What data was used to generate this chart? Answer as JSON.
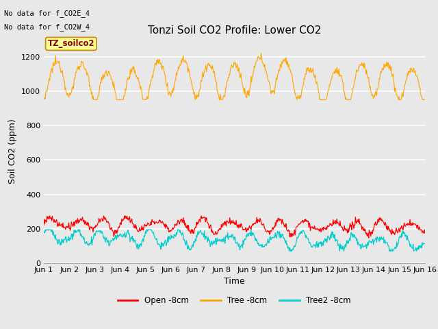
{
  "title": "Tonzi Soil CO2 Profile: Lower CO2",
  "xlabel": "Time",
  "ylabel": "Soil CO2 (ppm)",
  "no_data_text": [
    "No data for f_CO2E_4",
    "No data for f_CO2W_4"
  ],
  "annotation_text": "TZ_soilco2",
  "ylim": [
    0,
    1300
  ],
  "yticks": [
    0,
    200,
    400,
    600,
    800,
    1000,
    1200
  ],
  "xtick_labels": [
    "Jun 1",
    "Jun 2",
    "Jun 3",
    "Jun 4",
    "Jun 5",
    "Jun 6",
    "Jun 7",
    "Jun 8",
    "Jun 9",
    "Jun 10",
    "Jun 11",
    "Jun 12",
    "Jun 13",
    "Jun 14",
    "Jun 15",
    "Jun 16"
  ],
  "legend_labels": [
    "Open -8cm",
    "Tree -8cm",
    "Tree2 -8cm"
  ],
  "legend_colors": [
    "#ff0000",
    "#ffa500",
    "#00cccc"
  ],
  "line_colors": [
    "#ff0000",
    "#ffa500",
    "#00cccc"
  ],
  "bg_color": "#e8e8e8",
  "fig_bg_color": "#e8e8e8",
  "grid_color": "#ffffff",
  "annotation_bg": "#ffff99",
  "annotation_border": "#cc8800",
  "annotation_text_color": "#880000",
  "title_fontsize": 11,
  "label_fontsize": 9,
  "tick_fontsize": 8,
  "n_days": 15,
  "n_points_per_day": 48
}
